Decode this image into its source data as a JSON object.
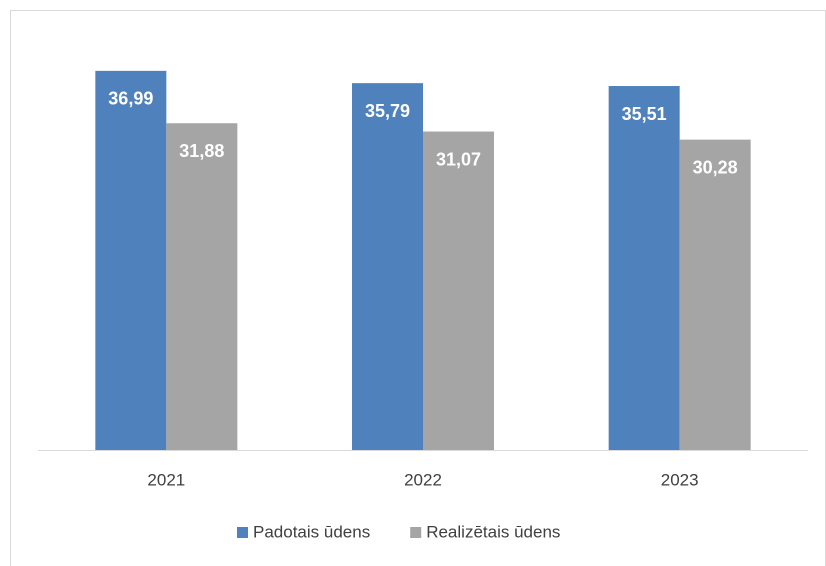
{
  "chart_data": {
    "type": "bar",
    "categories": [
      "2021",
      "2022",
      "2023"
    ],
    "series": [
      {
        "name": "Padotais ūdens",
        "color": "#4f81bd",
        "values": [
          36.99,
          35.79,
          35.51
        ],
        "value_labels": [
          "36,99",
          "35,79",
          "35,51"
        ]
      },
      {
        "name": "Realizētais ūdens",
        "color": "#a5a5a5",
        "values": [
          31.88,
          31.07,
          30.28
        ],
        "value_labels": [
          "31,88",
          "31,07",
          "30,28"
        ]
      }
    ],
    "ylim": [
      0,
      40
    ],
    "grid": false,
    "legend": "bottom"
  }
}
